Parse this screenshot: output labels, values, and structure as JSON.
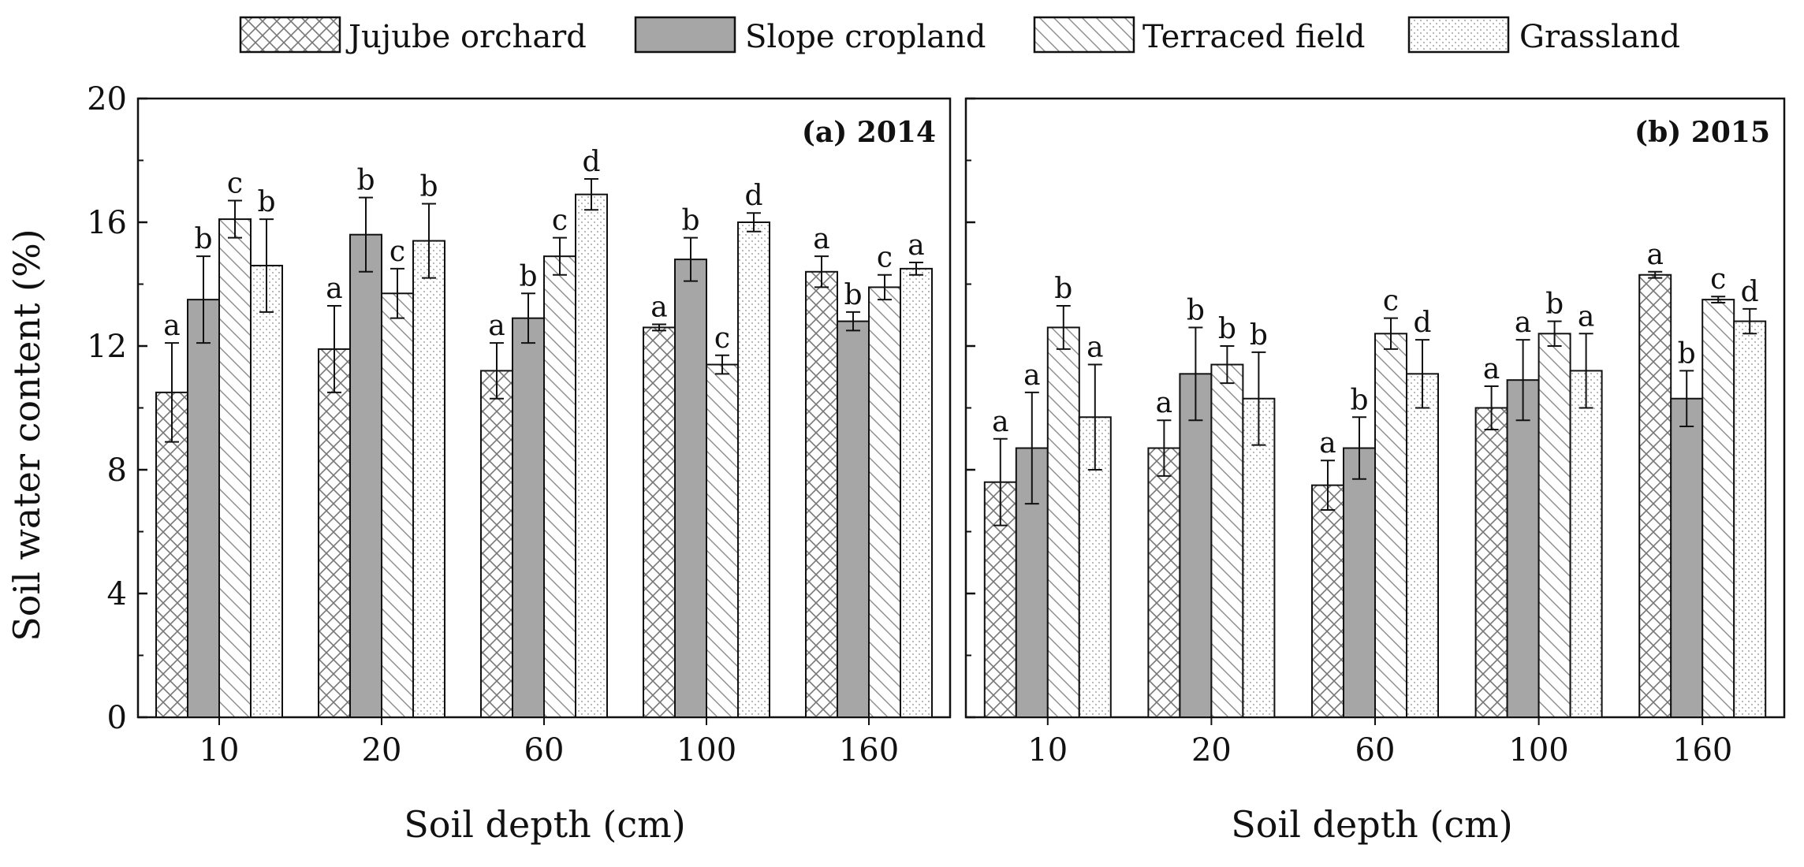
{
  "legend": [
    {
      "name": "Jujube orchard",
      "pattern": "crosshatch"
    },
    {
      "name": "Slope cropland",
      "pattern": "solid-gray"
    },
    {
      "name": "Terraced field",
      "pattern": "diagonal"
    },
    {
      "name": "Grassland",
      "pattern": "dots"
    }
  ],
  "colors": {
    "axis": "#111111",
    "bar_stroke": "#111111",
    "solid_fill": "#a6a6a6",
    "hatch": "#8a8a8a",
    "error_bar": "#111111"
  },
  "ylabel": "Soil water content (%)",
  "xlabel": "Soil depth (cm)",
  "chart_data": [
    {
      "type": "bar",
      "title": "(a) 2014",
      "xlabel": "Soil depth (cm)",
      "ylabel": "Soil water content (%)",
      "categories": [
        "10",
        "20",
        "60",
        "100",
        "160"
      ],
      "ylim": [
        0,
        20
      ],
      "yticks": [
        "0",
        "4",
        "8",
        "12",
        "16",
        "20"
      ],
      "series": [
        {
          "name": "Jujube orchard",
          "values": [
            10.5,
            11.9,
            11.2,
            12.6,
            14.4
          ],
          "errors": [
            1.6,
            1.4,
            0.9,
            0.1,
            0.5
          ],
          "letters": [
            "a",
            "a",
            "a",
            "a",
            "a"
          ]
        },
        {
          "name": "Slope cropland",
          "values": [
            13.5,
            15.6,
            12.9,
            14.8,
            12.8
          ],
          "errors": [
            1.4,
            1.2,
            0.8,
            0.7,
            0.3
          ],
          "letters": [
            "b",
            "b",
            "b",
            "b",
            "b"
          ]
        },
        {
          "name": "Terraced field",
          "values": [
            16.1,
            13.7,
            14.9,
            11.4,
            13.9
          ],
          "errors": [
            0.6,
            0.8,
            0.6,
            0.3,
            0.4
          ],
          "letters": [
            "c",
            "c",
            "c",
            "c",
            "c"
          ]
        },
        {
          "name": "Grassland",
          "values": [
            14.6,
            15.4,
            16.9,
            16.0,
            14.5
          ],
          "errors": [
            1.5,
            1.2,
            0.5,
            0.3,
            0.2
          ],
          "letters": [
            "b",
            "b",
            "d",
            "d",
            "a"
          ]
        }
      ]
    },
    {
      "type": "bar",
      "title": "(b) 2015",
      "xlabel": "Soil depth (cm)",
      "ylabel": "Soil water content (%)",
      "categories": [
        "10",
        "20",
        "60",
        "100",
        "160"
      ],
      "ylim": [
        0,
        20
      ],
      "yticks": [
        "0",
        "4",
        "8",
        "12",
        "16",
        "20"
      ],
      "series": [
        {
          "name": "Jujube orchard",
          "values": [
            7.6,
            8.7,
            7.5,
            10.0,
            14.3
          ],
          "errors": [
            1.4,
            0.9,
            0.8,
            0.7,
            0.1
          ],
          "letters": [
            "a",
            "a",
            "a",
            "a",
            "a"
          ]
        },
        {
          "name": "Slope cropland",
          "values": [
            8.7,
            11.1,
            8.7,
            10.9,
            10.3
          ],
          "errors": [
            1.8,
            1.5,
            1.0,
            1.3,
            0.9
          ],
          "letters": [
            "a",
            "b",
            "b",
            "a",
            "b"
          ]
        },
        {
          "name": "Terraced field",
          "values": [
            12.6,
            11.4,
            12.4,
            12.4,
            13.5
          ],
          "errors": [
            0.7,
            0.6,
            0.5,
            0.4,
            0.1
          ],
          "letters": [
            "b",
            "b",
            "c",
            "b",
            "c"
          ]
        },
        {
          "name": "Grassland",
          "values": [
            9.7,
            10.3,
            11.1,
            11.2,
            12.8
          ],
          "errors": [
            1.7,
            1.5,
            1.1,
            1.2,
            0.4
          ],
          "letters": [
            "a",
            "b",
            "d",
            "a",
            "d"
          ]
        }
      ]
    }
  ]
}
